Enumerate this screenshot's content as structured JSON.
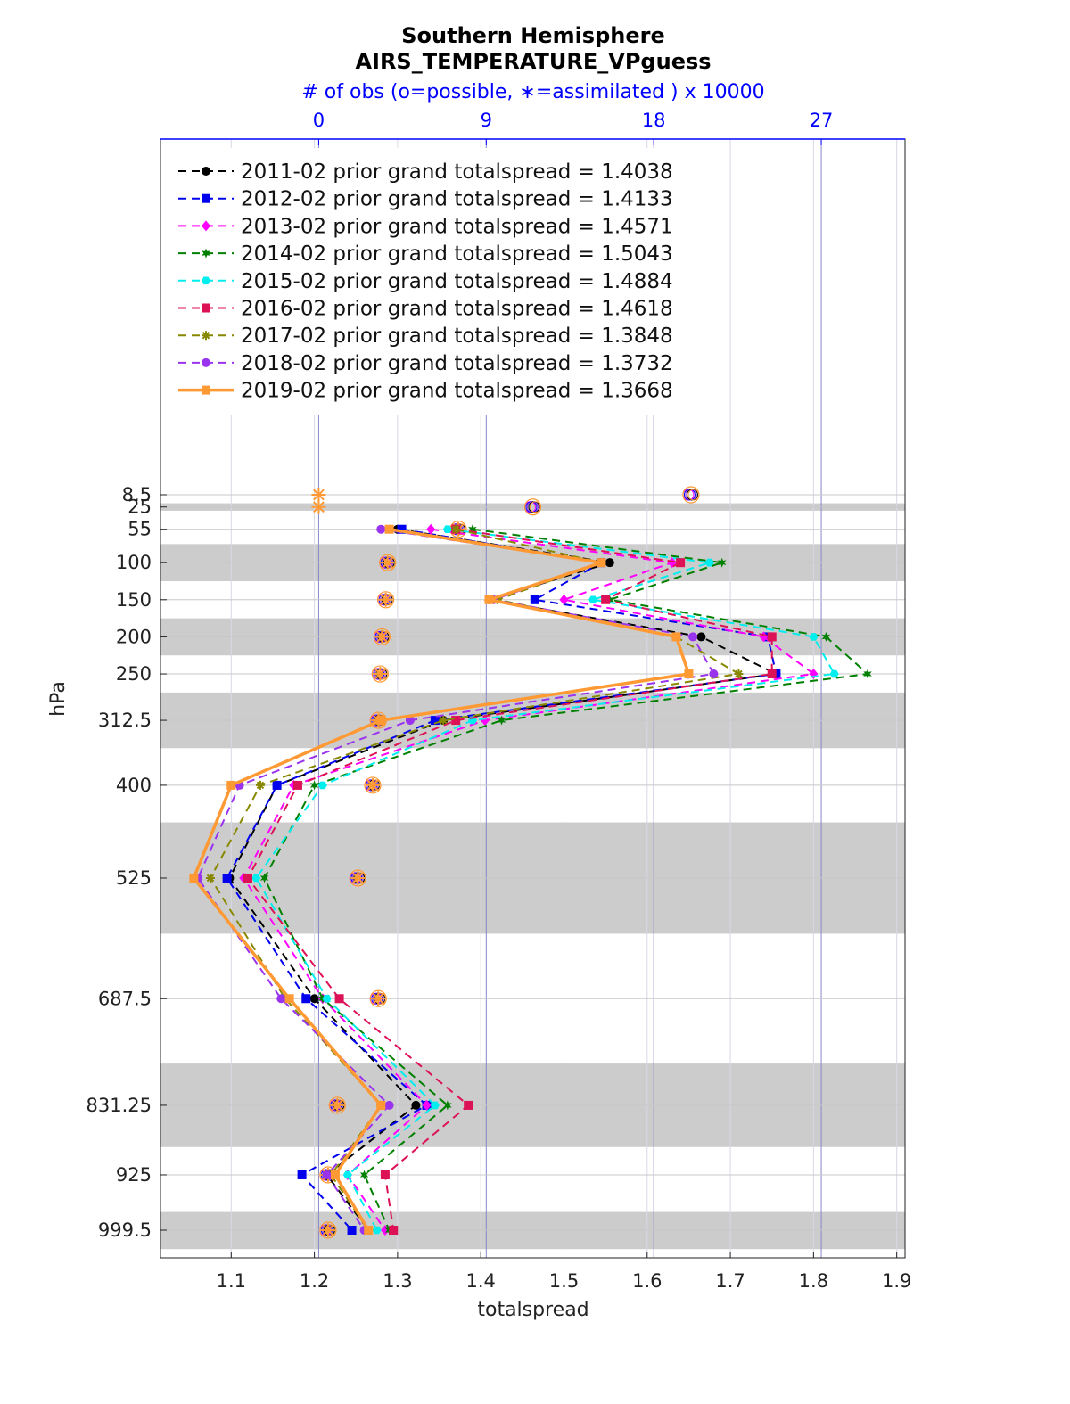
{
  "chart_data": {
    "type": "line",
    "title": "Southern Hemisphere",
    "subtitle": "AIRS_TEMPERATURE_VPguess",
    "top_axis_label": "# of obs (o=possible, ∗=assimilated ) x 10000",
    "xlabel": "totalspread",
    "ylabel": "hPa",
    "xlim": [
      1.015,
      1.91
    ],
    "x_ticks": [
      1.1,
      1.2,
      1.3,
      1.4,
      1.5,
      1.6,
      1.7,
      1.8,
      1.9
    ],
    "x_tick_labels": [
      "1.1",
      "1.2",
      "1.3",
      "1.4",
      "1.5",
      "1.6",
      "1.7",
      "1.8",
      "1.9"
    ],
    "top_xlim": [
      -8.5,
      31.5
    ],
    "top_ticks": [
      0,
      9,
      18,
      27
    ],
    "top_tick_labels": [
      "0",
      "9",
      "18",
      "27"
    ],
    "levels": [
      8.5,
      25,
      55,
      100,
      150,
      200,
      250,
      312.5,
      400,
      525,
      687.5,
      831.25,
      925,
      999.5
    ],
    "level_labels": [
      "8.5",
      "25",
      "55",
      "100",
      "150",
      "200",
      "250",
      "312.5",
      "400",
      "525",
      "687.5",
      "831.25",
      "925",
      "999.5"
    ],
    "shaded_layers": [
      [
        20,
        30
      ],
      [
        75,
        125
      ],
      [
        175,
        225
      ],
      [
        275,
        350
      ],
      [
        450,
        600
      ],
      [
        775,
        887.5
      ],
      [
        975,
        1025
      ]
    ],
    "y_axis": "pressure, increasing downward",
    "legend_position": "top-left",
    "grid": true,
    "series": [
      {
        "name": "2011-02 prior grand totalspread = 1.4038",
        "color": "#000000",
        "marker": "circle",
        "dashed": true,
        "values": [
          null,
          null,
          1.3,
          1.555,
          1.41,
          1.665,
          1.755,
          1.355,
          1.155,
          1.098,
          1.2,
          1.322,
          1.215,
          1.265
        ]
      },
      {
        "name": "2012-02 prior grand totalspread = 1.4133",
        "color": "#0000ee",
        "marker": "square",
        "dashed": true,
        "values": [
          null,
          null,
          1.305,
          1.545,
          1.465,
          1.745,
          1.755,
          1.345,
          1.155,
          1.095,
          1.19,
          1.335,
          1.185,
          1.245
        ]
      },
      {
        "name": "2013-02 prior grand totalspread = 1.4571",
        "color": "#ff00ff",
        "marker": "diamond",
        "dashed": true,
        "values": [
          null,
          null,
          1.34,
          1.63,
          1.5,
          1.74,
          1.8,
          1.405,
          1.175,
          1.115,
          1.21,
          1.335,
          1.24,
          1.285
        ]
      },
      {
        "name": "2014-02 prior grand totalspread = 1.5043",
        "color": "#008000",
        "marker": "hexagram",
        "dashed": true,
        "values": [
          null,
          null,
          1.39,
          1.69,
          1.555,
          1.815,
          1.865,
          1.425,
          1.2,
          1.14,
          1.21,
          1.36,
          1.26,
          1.29
        ]
      },
      {
        "name": "2015-02 prior grand totalspread = 1.4884",
        "color": "#00eeee",
        "marker": "hexagon",
        "dashed": true,
        "values": [
          null,
          null,
          1.36,
          1.675,
          1.535,
          1.8,
          1.825,
          1.39,
          1.21,
          1.13,
          1.215,
          1.345,
          1.24,
          1.275
        ]
      },
      {
        "name": "2016-02 prior grand totalspread = 1.4618",
        "color": "#dd1155",
        "marker": "square",
        "dashed": true,
        "values": [
          null,
          null,
          1.37,
          1.64,
          1.55,
          1.75,
          1.75,
          1.37,
          1.18,
          1.12,
          1.23,
          1.385,
          1.285,
          1.295
        ]
      },
      {
        "name": "2017-02 prior grand totalspread = 1.3848",
        "color": "#888800",
        "marker": "asterisk",
        "dashed": true,
        "values": [
          null,
          null,
          1.37,
          1.545,
          1.42,
          1.635,
          1.71,
          1.355,
          1.135,
          1.075,
          1.165,
          1.28,
          1.22,
          1.265
        ]
      },
      {
        "name": "2018-02 prior grand totalspread = 1.3732",
        "color": "#9933ee",
        "marker": "circle",
        "dashed": true,
        "values": [
          null,
          null,
          1.28,
          1.545,
          1.415,
          1.655,
          1.68,
          1.315,
          1.11,
          1.06,
          1.16,
          1.29,
          1.215,
          1.26
        ]
      },
      {
        "name": "2019-02 prior grand totalspread = 1.3668",
        "color": "#ff9933",
        "marker": "square",
        "dashed": false,
        "values": [
          null,
          null,
          1.29,
          1.545,
          1.41,
          1.635,
          1.65,
          1.28,
          1.1,
          1.055,
          1.17,
          1.28,
          1.225,
          1.265
        ]
      }
    ],
    "obs_counts_x10000": {
      "possible": [
        20,
        11.5,
        7.5,
        3.7,
        3.6,
        3.4,
        3.3,
        3.2,
        2.9,
        2.1,
        3.2,
        1.0,
        0.5,
        0.5
      ],
      "assimilated": [
        0,
        0,
        7.5,
        3.7,
        3.6,
        3.4,
        3.3,
        3.2,
        2.9,
        2.1,
        3.2,
        1.0,
        0.5,
        0.5
      ]
    }
  }
}
